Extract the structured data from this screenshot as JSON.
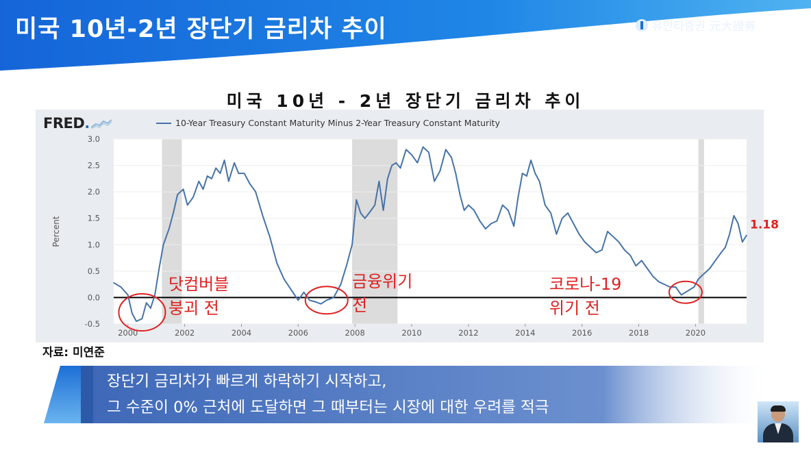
{
  "slide": {
    "title": "미국 10년-2년 장단기 금리차 추이",
    "logo_text": "유안타증권 元大證券",
    "logo_icon": "company-logo-icon"
  },
  "chart_title": "미국 10년 - 2년 장단기 금리차 추이",
  "fred": {
    "brand": "FRED",
    "legend": "10-Year Treasury Constant Maturity Minus 2-Year Treasury Constant Maturity"
  },
  "chart_data": {
    "type": "line",
    "title": "미국 10년 - 2년 장단기 금리차 추이",
    "ylabel": "Percent",
    "xlabel": "",
    "xlim": [
      1999.5,
      2021.8
    ],
    "ylim": [
      -0.5,
      3.0
    ],
    "y_ticks": [
      "3.0",
      "2.5",
      "2.0",
      "1.5",
      "1.0",
      "0.5",
      "0.0",
      "-0.5"
    ],
    "x_ticks": [
      "2000",
      "2002",
      "2004",
      "2006",
      "2008",
      "2010",
      "2012",
      "2014",
      "2016",
      "2018",
      "2020"
    ],
    "recessions": [
      [
        2001.2,
        2001.9
      ],
      [
        2007.9,
        2009.5
      ],
      [
        2020.1,
        2020.3
      ]
    ],
    "series": [
      {
        "name": "10-Year Treasury Constant Maturity Minus 2-Year Treasury Constant Maturity",
        "color": "#4572a7",
        "x": [
          1999.5,
          1999.75,
          2000.0,
          2000.15,
          2000.3,
          2000.5,
          2000.65,
          2000.8,
          2000.95,
          2001.1,
          2001.25,
          2001.45,
          2001.6,
          2001.75,
          2001.95,
          2002.1,
          2002.3,
          2002.5,
          2002.65,
          2002.8,
          2002.95,
          2003.1,
          2003.25,
          2003.4,
          2003.55,
          2003.75,
          2003.9,
          2004.1,
          2004.3,
          2004.5,
          2004.75,
          2005.0,
          2005.25,
          2005.5,
          2005.75,
          2006.0,
          2006.2,
          2006.4,
          2006.6,
          2006.8,
          2007.0,
          2007.25,
          2007.5,
          2007.7,
          2007.9,
          2008.05,
          2008.2,
          2008.35,
          2008.5,
          2008.7,
          2008.85,
          2009.0,
          2009.15,
          2009.3,
          2009.45,
          2009.6,
          2009.8,
          2010.0,
          2010.2,
          2010.4,
          2010.6,
          2010.8,
          2011.0,
          2011.2,
          2011.4,
          2011.55,
          2011.7,
          2011.85,
          2012.0,
          2012.2,
          2012.4,
          2012.6,
          2012.8,
          2013.0,
          2013.2,
          2013.4,
          2013.6,
          2013.75,
          2013.9,
          2014.05,
          2014.2,
          2014.35,
          2014.5,
          2014.7,
          2014.9,
          2015.1,
          2015.3,
          2015.5,
          2015.7,
          2015.9,
          2016.1,
          2016.3,
          2016.5,
          2016.7,
          2016.9,
          2017.1,
          2017.3,
          2017.5,
          2017.7,
          2017.9,
          2018.1,
          2018.3,
          2018.5,
          2018.7,
          2018.9,
          2019.1,
          2019.3,
          2019.5,
          2019.65,
          2019.8,
          2019.95,
          2020.1,
          2020.3,
          2020.5,
          2020.7,
          2020.9,
          2021.05,
          2021.2,
          2021.35,
          2021.5,
          2021.65,
          2021.8
        ],
        "values": [
          0.28,
          0.2,
          0.05,
          -0.3,
          -0.45,
          -0.4,
          -0.1,
          -0.2,
          0.05,
          0.55,
          1.0,
          1.3,
          1.6,
          1.95,
          2.05,
          1.75,
          1.9,
          2.2,
          2.05,
          2.3,
          2.25,
          2.45,
          2.35,
          2.6,
          2.2,
          2.55,
          2.35,
          2.35,
          2.15,
          2.0,
          1.55,
          1.15,
          0.65,
          0.35,
          0.15,
          -0.05,
          0.1,
          -0.05,
          -0.08,
          -0.12,
          -0.05,
          0.0,
          0.25,
          0.6,
          1.0,
          1.85,
          1.6,
          1.5,
          1.6,
          1.75,
          2.2,
          1.65,
          2.25,
          2.5,
          2.55,
          2.45,
          2.8,
          2.7,
          2.55,
          2.85,
          2.75,
          2.2,
          2.4,
          2.8,
          2.65,
          2.35,
          1.95,
          1.65,
          1.75,
          1.65,
          1.45,
          1.3,
          1.4,
          1.45,
          1.75,
          1.65,
          1.35,
          1.9,
          2.35,
          2.3,
          2.6,
          2.35,
          2.2,
          1.75,
          1.6,
          1.2,
          1.5,
          1.6,
          1.4,
          1.2,
          1.05,
          0.95,
          0.85,
          0.9,
          1.25,
          1.15,
          1.05,
          0.9,
          0.8,
          0.6,
          0.7,
          0.55,
          0.4,
          0.3,
          0.25,
          0.2,
          0.2,
          0.05,
          0.1,
          0.15,
          0.2,
          0.35,
          0.45,
          0.55,
          0.7,
          0.85,
          0.95,
          1.2,
          1.55,
          1.4,
          1.05,
          1.18
        ]
      }
    ],
    "end_label": "1.18"
  },
  "annotations": {
    "dotcom": [
      "닷컴버블",
      "붕괴 전"
    ],
    "gfc": [
      "금융위기",
      "전"
    ],
    "covid": [
      "코로나-19",
      "위기 전"
    ],
    "color": "#e02020"
  },
  "source": "자료: 미연준",
  "banner": {
    "line1": "장단기 금리차가 빠르게 하락하기 시작하고,",
    "line2": "그 수준이 0% 근처에 도달하면 그 때부터는 시장에 대한 우려를 적극",
    "color": "#4a78c4"
  },
  "presenter_icon": "presenter-avatar-icon"
}
